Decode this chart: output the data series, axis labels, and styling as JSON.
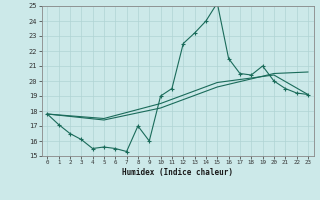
{
  "xlabel": "Humidex (Indice chaleur)",
  "xlim": [
    -0.5,
    23.5
  ],
  "ylim": [
    15,
    25
  ],
  "xticks": [
    0,
    1,
    2,
    3,
    4,
    5,
    6,
    7,
    8,
    9,
    10,
    11,
    12,
    13,
    14,
    15,
    16,
    17,
    18,
    19,
    20,
    21,
    22,
    23
  ],
  "yticks": [
    15,
    16,
    17,
    18,
    19,
    20,
    21,
    22,
    23,
    24,
    25
  ],
  "bg_color": "#cce9e9",
  "line_color": "#1a6b5a",
  "grid_color": "#b0d4d4",
  "line1_x": [
    0,
    1,
    2,
    3,
    4,
    5,
    6,
    7,
    8,
    9,
    10,
    11,
    12,
    13,
    14,
    15,
    16,
    17,
    18,
    19,
    20,
    21,
    22,
    23
  ],
  "line1_y": [
    17.8,
    17.1,
    16.5,
    16.1,
    15.5,
    15.6,
    15.5,
    15.3,
    17.0,
    16.0,
    19.0,
    19.5,
    22.5,
    23.2,
    24.0,
    25.2,
    21.5,
    20.5,
    20.4,
    21.0,
    20.0,
    19.5,
    19.2,
    19.1
  ],
  "line2_x": [
    0,
    5,
    10,
    15,
    20,
    23
  ],
  "line2_y": [
    17.8,
    17.4,
    18.2,
    19.6,
    20.5,
    20.6
  ],
  "line3_x": [
    0,
    5,
    10,
    15,
    20,
    23
  ],
  "line3_y": [
    17.8,
    17.5,
    18.5,
    19.9,
    20.4,
    19.1
  ]
}
